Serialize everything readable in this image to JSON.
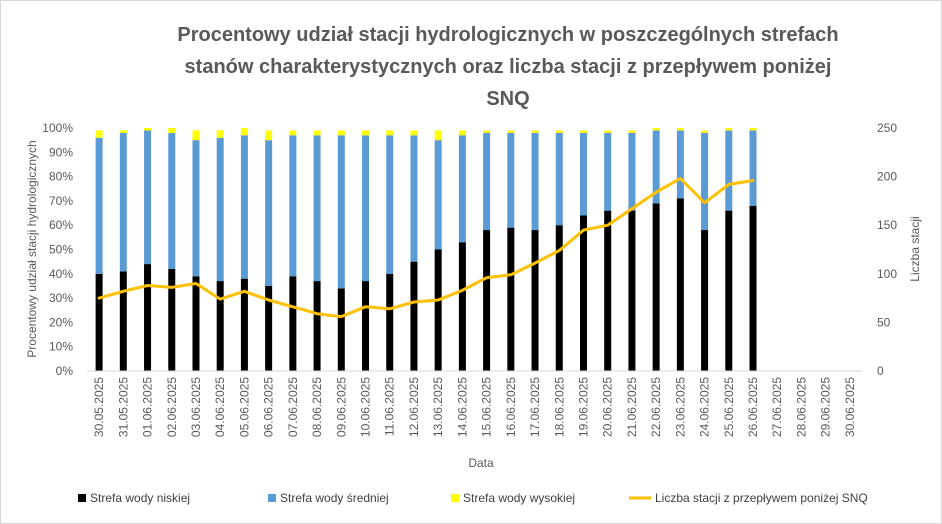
{
  "chart_data": {
    "type": "bar",
    "stacked": true,
    "title_lines": [
      "Procentowy udział stacji hydrologicznych w poszczególnych strefach",
      "stanów charakterystycznych oraz liczba stacji z przepływem poniżej",
      "SNQ"
    ],
    "xlabel": "Data",
    "ylabel": "Procentowy udział stacji hydrologicznych",
    "y2label": "Liczba stacji",
    "ylim": [
      0,
      1
    ],
    "y2lim": [
      0,
      250
    ],
    "y_ticks": [
      "0%",
      "10%",
      "20%",
      "30%",
      "40%",
      "50%",
      "60%",
      "70%",
      "80%",
      "90%",
      "100%"
    ],
    "y2_ticks": [
      "0",
      "50",
      "100",
      "150",
      "200",
      "250"
    ],
    "categories": [
      "30.05.2025",
      "31.05.2025",
      "01.06.2025",
      "02.06.2025",
      "03.06.2025",
      "04.06.2025",
      "05.06.2025",
      "06.06.2025",
      "07.06.2025",
      "08.06.2025",
      "09.06.2025",
      "10.06.2025",
      "11.06.2025",
      "12.06.2025",
      "13.06.2025",
      "14.06.2025",
      "15.06.2025",
      "16.06.2025",
      "17.06.2025",
      "18.06.2025",
      "19.06.2025",
      "20.06.2025",
      "21.06.2025",
      "22.06.2025",
      "23.06.2025",
      "24.06.2025",
      "25.06.2025",
      "26.06.2025",
      "27.06.2025",
      "28.06.2025",
      "29.06.2025",
      "30.06.2025"
    ],
    "series": [
      {
        "name": "Strefa wody niskiej",
        "kind": "bar",
        "color": "#000000",
        "values": [
          0.4,
          0.41,
          0.44,
          0.42,
          0.39,
          0.37,
          0.38,
          0.35,
          0.39,
          0.37,
          0.34,
          0.37,
          0.4,
          0.45,
          0.5,
          0.53,
          0.58,
          0.59,
          0.58,
          0.6,
          0.64,
          0.66,
          0.66,
          0.69,
          0.71,
          0.58,
          0.66,
          0.68,
          null,
          null,
          null,
          null
        ]
      },
      {
        "name": "Strefa wody średniej",
        "kind": "bar",
        "color": "#5b9bd5",
        "values": [
          0.56,
          0.57,
          0.55,
          0.56,
          0.56,
          0.59,
          0.59,
          0.6,
          0.58,
          0.6,
          0.63,
          0.6,
          0.57,
          0.52,
          0.45,
          0.44,
          0.4,
          0.39,
          0.4,
          0.38,
          0.34,
          0.32,
          0.32,
          0.3,
          0.28,
          0.4,
          0.33,
          0.31,
          null,
          null,
          null,
          null
        ]
      },
      {
        "name": "Strefa wody wysokiej",
        "kind": "bar",
        "color": "#ffff00",
        "values": [
          0.03,
          0.01,
          0.01,
          0.02,
          0.04,
          0.03,
          0.03,
          0.04,
          0.02,
          0.02,
          0.02,
          0.02,
          0.02,
          0.02,
          0.04,
          0.02,
          0.01,
          0.01,
          0.01,
          0.01,
          0.01,
          0.01,
          0.01,
          0.01,
          0.01,
          0.01,
          0.01,
          0.01,
          null,
          null,
          null,
          null
        ]
      },
      {
        "name": "Liczba stacji z przepływem poniżej SNQ",
        "kind": "line",
        "axis": "right",
        "color": "#ffc000",
        "values": [
          75,
          82,
          88,
          86,
          90,
          74,
          82,
          73,
          66,
          59,
          56,
          66,
          64,
          71,
          73,
          83,
          96,
          99,
          111,
          124,
          145,
          150,
          167,
          184,
          198,
          173,
          192,
          196,
          null,
          null,
          null,
          null
        ]
      }
    ],
    "grid": false,
    "legend_position": "bottom"
  }
}
